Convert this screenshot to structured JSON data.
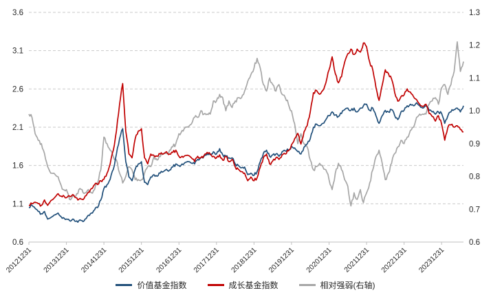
{
  "chart_data": {
    "type": "line",
    "title": "",
    "frequency": "monthly",
    "x_start": "2012-12",
    "x_end": "2024-07",
    "x_labels": [
      "20121231",
      "20131231",
      "20141231",
      "20151231",
      "20161231",
      "20171231",
      "20181231",
      "20191231",
      "20201231",
      "20211231",
      "20221231",
      "20231231"
    ],
    "x_label_every_n_points": 12,
    "grid": "horizontal-dashed",
    "legend_position": "bottom",
    "left_axis": {
      "min": 0.6,
      "max": 3.6,
      "ticks": [
        0.6,
        1.1,
        1.6,
        2.1,
        2.6,
        3.1,
        3.6
      ]
    },
    "right_axis": {
      "min": 0.6,
      "max": 1.3,
      "ticks": [
        0.6,
        0.7,
        0.8,
        0.9,
        1.0,
        1.1,
        1.2,
        1.3
      ]
    },
    "series": [
      {
        "name": "价值基金指数",
        "axis": "left",
        "color": "#1f4e79",
        "values": [
          1.05,
          1.08,
          1.04,
          1.0,
          0.97,
          1.0,
          0.9,
          0.92,
          0.95,
          0.97,
          0.94,
          0.92,
          0.9,
          0.88,
          0.9,
          0.87,
          0.88,
          0.88,
          0.9,
          0.95,
          0.98,
          1.02,
          1.05,
          1.15,
          1.3,
          1.35,
          1.42,
          1.55,
          1.75,
          1.95,
          2.08,
          1.65,
          1.45,
          1.4,
          1.55,
          1.62,
          1.65,
          1.38,
          1.35,
          1.45,
          1.48,
          1.46,
          1.5,
          1.52,
          1.55,
          1.54,
          1.58,
          1.62,
          1.6,
          1.62,
          1.64,
          1.65,
          1.63,
          1.62,
          1.68,
          1.7,
          1.72,
          1.75,
          1.74,
          1.78,
          1.75,
          1.82,
          1.74,
          1.72,
          1.7,
          1.7,
          1.62,
          1.6,
          1.57,
          1.58,
          1.48,
          1.5,
          1.47,
          1.52,
          1.65,
          1.76,
          1.8,
          1.72,
          1.74,
          1.75,
          1.72,
          1.78,
          1.79,
          1.8,
          1.85,
          1.83,
          1.78,
          1.75,
          1.84,
          1.88,
          1.95,
          2.1,
          2.14,
          2.12,
          2.15,
          2.2,
          2.25,
          2.3,
          2.26,
          2.24,
          2.28,
          2.33,
          2.35,
          2.32,
          2.35,
          2.3,
          2.35,
          2.38,
          2.4,
          2.32,
          2.35,
          2.25,
          2.15,
          2.25,
          2.32,
          2.3,
          2.33,
          2.25,
          2.2,
          2.3,
          2.32,
          2.38,
          2.4,
          2.38,
          2.42,
          2.38,
          2.35,
          2.38,
          2.32,
          2.3,
          2.27,
          2.3,
          2.28,
          2.15,
          2.25,
          2.3,
          2.33,
          2.35,
          2.3,
          2.38
        ]
      },
      {
        "name": "成长基金指数",
        "axis": "left",
        "color": "#c00000",
        "values": [
          1.08,
          1.1,
          1.12,
          1.1,
          1.08,
          1.15,
          1.08,
          1.14,
          1.17,
          1.22,
          1.2,
          1.21,
          1.18,
          1.2,
          1.22,
          1.18,
          1.16,
          1.16,
          1.2,
          1.25,
          1.3,
          1.35,
          1.35,
          1.4,
          1.42,
          1.5,
          1.62,
          1.8,
          2.05,
          2.4,
          2.67,
          2.05,
          1.75,
          1.7,
          1.95,
          2.05,
          2.08,
          1.7,
          1.62,
          1.75,
          1.73,
          1.72,
          1.75,
          1.75,
          1.78,
          1.75,
          1.77,
          1.8,
          1.72,
          1.72,
          1.73,
          1.73,
          1.7,
          1.65,
          1.72,
          1.7,
          1.73,
          1.77,
          1.75,
          1.72,
          1.7,
          1.74,
          1.67,
          1.72,
          1.65,
          1.68,
          1.58,
          1.55,
          1.52,
          1.5,
          1.4,
          1.45,
          1.4,
          1.44,
          1.58,
          1.7,
          1.75,
          1.62,
          1.66,
          1.7,
          1.68,
          1.74,
          1.75,
          1.79,
          1.87,
          1.95,
          2.02,
          1.88,
          2.04,
          2.12,
          2.3,
          2.55,
          2.58,
          2.53,
          2.58,
          2.68,
          2.85,
          3.02,
          2.8,
          2.68,
          2.76,
          2.95,
          3.06,
          3.12,
          3.05,
          3.12,
          3.08,
          3.2,
          3.15,
          2.95,
          2.85,
          2.62,
          2.45,
          2.65,
          2.85,
          2.8,
          2.73,
          2.55,
          2.44,
          2.5,
          2.52,
          2.6,
          2.56,
          2.5,
          2.46,
          2.4,
          2.37,
          2.4,
          2.28,
          2.24,
          2.18,
          2.25,
          2.14,
          1.93,
          2.1,
          2.13,
          2.1,
          2.12,
          2.07,
          2.04
        ]
      },
      {
        "name": "相对强弱(右轴)",
        "axis": "right",
        "color": "#a6a6a6",
        "values": [
          0.99,
          0.98,
          0.93,
          0.91,
          0.9,
          0.87,
          0.83,
          0.81,
          0.81,
          0.8,
          0.78,
          0.76,
          0.76,
          0.73,
          0.74,
          0.74,
          0.76,
          0.76,
          0.75,
          0.76,
          0.75,
          0.76,
          0.78,
          0.82,
          0.92,
          0.9,
          0.88,
          0.86,
          0.85,
          0.81,
          0.78,
          0.8,
          0.83,
          0.82,
          0.79,
          0.79,
          0.79,
          0.81,
          0.83,
          0.83,
          0.86,
          0.85,
          0.86,
          0.87,
          0.87,
          0.88,
          0.89,
          0.9,
          0.93,
          0.94,
          0.95,
          0.95,
          0.96,
          0.98,
          0.98,
          1.0,
          0.99,
          0.99,
          0.99,
          1.03,
          1.03,
          1.05,
          1.04,
          1.0,
          1.03,
          1.01,
          1.03,
          1.04,
          1.04,
          1.06,
          1.09,
          1.11,
          1.13,
          1.16,
          1.13,
          1.08,
          1.06,
          1.1,
          1.08,
          1.06,
          1.08,
          1.05,
          1.04,
          1.02,
          1.0,
          0.96,
          0.9,
          0.93,
          0.9,
          0.89,
          0.85,
          0.82,
          0.83,
          0.84,
          0.83,
          0.82,
          0.79,
          0.76,
          0.81,
          0.84,
          0.82,
          0.79,
          0.77,
          0.71,
          0.75,
          0.73,
          0.76,
          0.72,
          0.75,
          0.78,
          0.82,
          0.86,
          0.88,
          0.84,
          0.79,
          0.81,
          0.84,
          0.87,
          0.89,
          0.91,
          0.9,
          0.92,
          0.94,
          0.95,
          0.98,
          0.99,
          0.99,
          0.99,
          1.02,
          1.03,
          1.04,
          1.02,
          1.07,
          1.08,
          1.05,
          1.08,
          1.12,
          1.21,
          1.12,
          1.15
        ]
      }
    ],
    "colors": {
      "grid": "#c9c9c9",
      "axis_line": "#bfbfbf",
      "tick_text": "#262626"
    }
  }
}
